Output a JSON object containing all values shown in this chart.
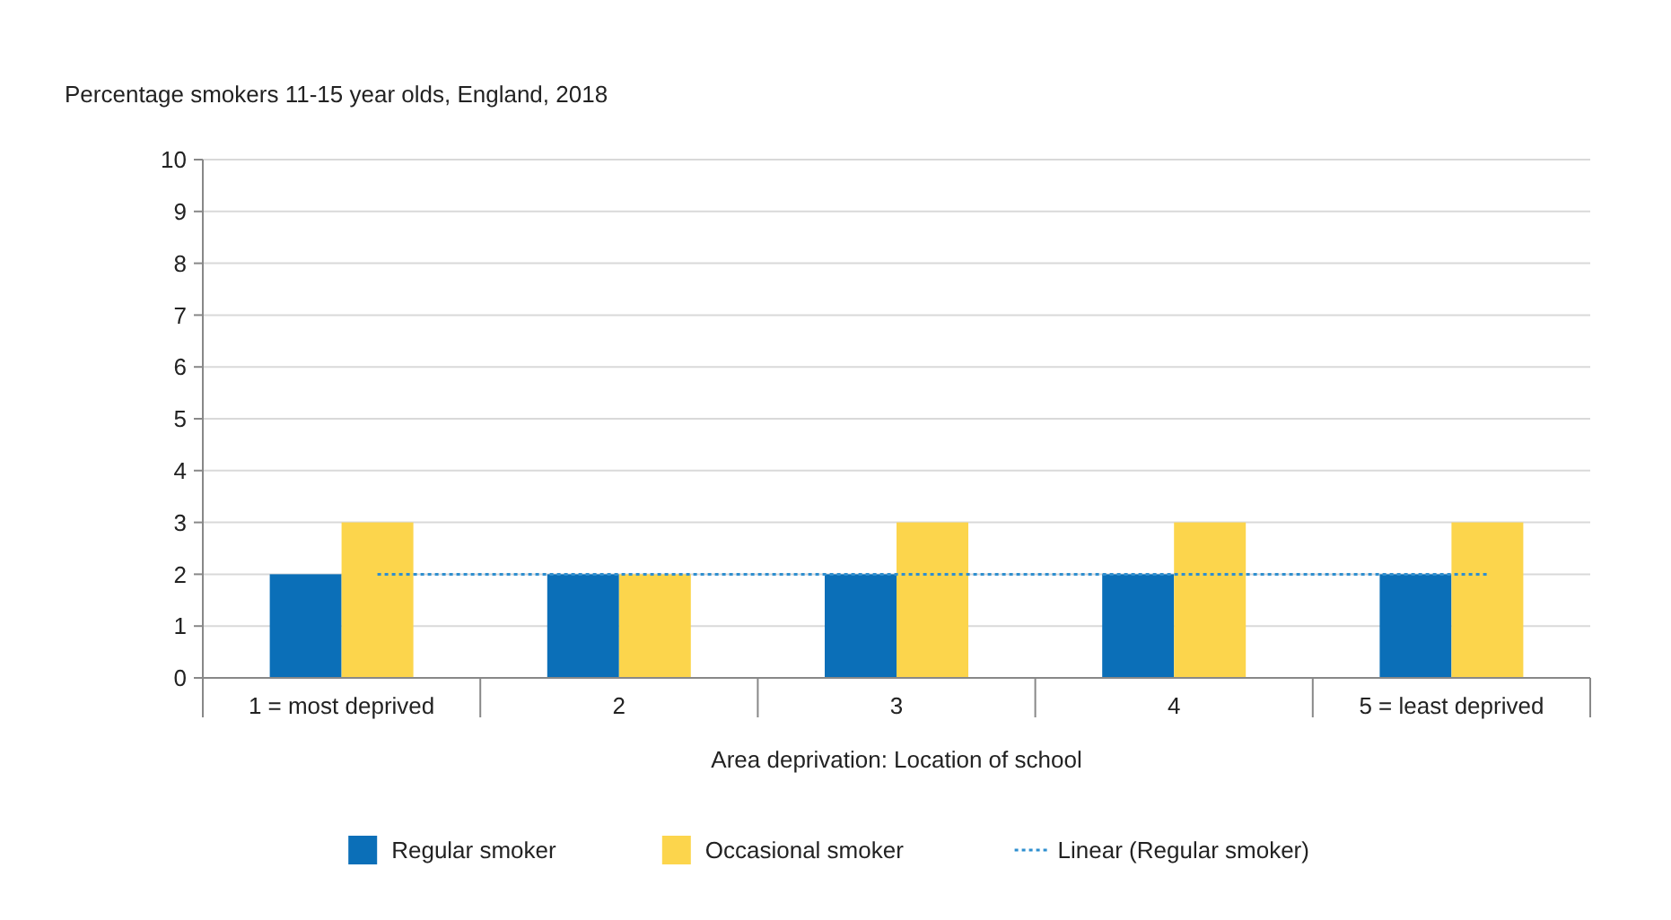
{
  "chart_data": {
    "type": "bar",
    "title": "Percentage smokers 11-15 year olds, England, 2018",
    "xlabel": "Area deprivation: Location of school",
    "categories": [
      "1 = most deprived",
      "2",
      "3",
      "4",
      "5 = least deprived"
    ],
    "series": [
      {
        "name": "Regular smoker",
        "color": "#0b6fb8",
        "values": [
          2,
          2,
          2,
          2,
          2
        ]
      },
      {
        "name": "Occasional smoker",
        "color": "#fcd54c",
        "values": [
          3,
          2,
          3,
          3,
          3
        ]
      },
      {
        "name": "Linear (Regular smoker)",
        "type": "line",
        "color": "#2f8fd0",
        "line_style": "dotted",
        "values": [
          2,
          2,
          2,
          2,
          2
        ]
      }
    ],
    "ylim": [
      0,
      10
    ],
    "yticks": [
      0,
      1,
      2,
      3,
      4,
      5,
      6,
      7,
      8,
      9,
      10
    ],
    "grid": "y",
    "legend": "bottom"
  }
}
